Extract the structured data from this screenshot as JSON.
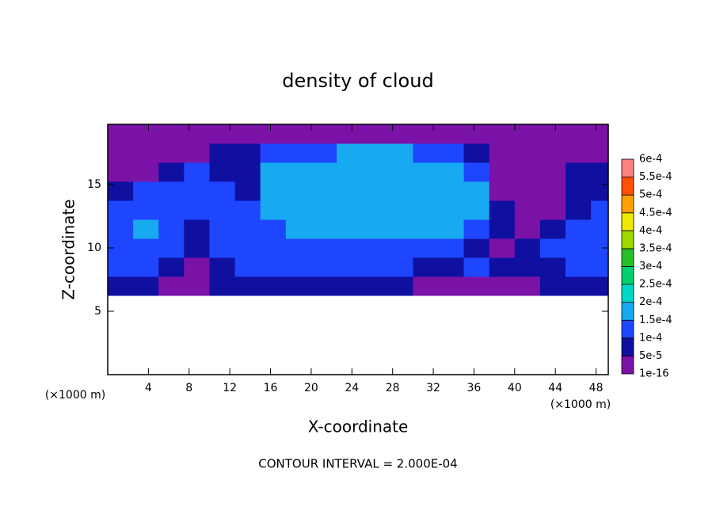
{
  "chart_data": {
    "type": "contour",
    "title": "density of cloud",
    "xlabel": "X-coordinate",
    "ylabel": "Z-coordinate",
    "x_unit": "(×1000 m)",
    "y_unit": "(×1000 m)",
    "footer": "CONTOUR INTERVAL = 2.000E-04",
    "x": [
      1.25,
      3.75,
      6.25,
      8.75,
      11.25,
      13.75,
      16.25,
      18.75,
      21.25,
      23.75,
      26.25,
      28.75,
      31.25,
      33.75,
      36.25,
      38.75,
      41.25,
      43.75,
      46.25,
      48.75
    ],
    "y": [
      7,
      8.5,
      10,
      11.5,
      13,
      14.5,
      16,
      17.5,
      19
    ],
    "values": [
      [
        7.5e-05,
        7.5e-05,
        2.5e-05,
        2.5e-05,
        7.5e-05,
        7.5e-05,
        7.5e-05,
        7.5e-05,
        7.5e-05,
        7.5e-05,
        7.5e-05,
        7.5e-05,
        2.5e-05,
        2.5e-05,
        2.5e-05,
        2.5e-05,
        2.5e-05,
        7.5e-05,
        7.5e-05,
        7.5e-05
      ],
      [
        0.000125,
        0.000125,
        7.5e-05,
        2.5e-05,
        7.5e-05,
        0.000125,
        0.000125,
        0.000125,
        0.000125,
        0.000125,
        0.000125,
        0.000125,
        7.5e-05,
        7.5e-05,
        0.000125,
        7.5e-05,
        7.5e-05,
        7.5e-05,
        0.000125,
        0.000125
      ],
      [
        0.000125,
        0.000125,
        0.000125,
        7.5e-05,
        0.000125,
        0.000125,
        0.000125,
        0.000125,
        0.000125,
        0.000125,
        0.000125,
        0.000125,
        0.000125,
        0.000125,
        7.5e-05,
        2.5e-05,
        7.5e-05,
        0.000125,
        0.000125,
        0.000125
      ],
      [
        0.000125,
        0.000175,
        0.000125,
        7.5e-05,
        0.000125,
        0.000125,
        0.000125,
        0.000175,
        0.000175,
        0.000175,
        0.000175,
        0.000175,
        0.000175,
        0.000175,
        0.000125,
        7.5e-05,
        2.5e-05,
        7.5e-05,
        0.000125,
        0.000125
      ],
      [
        0.000125,
        0.000125,
        0.000125,
        0.000125,
        0.000125,
        0.000125,
        0.000175,
        0.000175,
        0.000175,
        0.000175,
        0.000175,
        0.000175,
        0.000175,
        0.000175,
        0.000175,
        7.5e-05,
        2.5e-05,
        2.5e-05,
        7.5e-05,
        0.000125
      ],
      [
        7.5e-05,
        0.000125,
        0.000125,
        0.000125,
        0.000125,
        7.5e-05,
        0.000175,
        0.000175,
        0.000175,
        0.000175,
        0.000175,
        0.000175,
        0.000175,
        0.000175,
        0.000175,
        2.5e-05,
        2.5e-05,
        2.5e-05,
        7.5e-05,
        7.5e-05
      ],
      [
        2.5e-05,
        2.5e-05,
        7.5e-05,
        0.000125,
        7.5e-05,
        7.5e-05,
        0.000175,
        0.000175,
        0.000175,
        0.000175,
        0.000175,
        0.000175,
        0.000175,
        0.000175,
        0.000125,
        2.5e-05,
        2.5e-05,
        2.5e-05,
        7.5e-05,
        7.5e-05
      ],
      [
        2.5e-05,
        2.5e-05,
        2.5e-05,
        2.5e-05,
        7.5e-05,
        7.5e-05,
        0.000125,
        0.000125,
        0.000125,
        0.000175,
        0.000175,
        0.000175,
        0.000125,
        0.000125,
        7.5e-05,
        2.5e-05,
        2.5e-05,
        2.5e-05,
        2.5e-05,
        2.5e-05
      ],
      [
        2.5e-05,
        2.5e-05,
        2.5e-05,
        2.5e-05,
        2.5e-05,
        2.5e-05,
        2.5e-05,
        2.5e-05,
        2.5e-05,
        2.5e-05,
        2.5e-05,
        2.5e-05,
        2.5e-05,
        2.5e-05,
        2.5e-05,
        2.5e-05,
        2.5e-05,
        2.5e-05,
        2.5e-05,
        2.5e-05
      ]
    ],
    "xlim": [
      0,
      49.2
    ],
    "ylim": [
      0,
      19.75
    ],
    "xticks": [
      4,
      8,
      12,
      16,
      20,
      24,
      28,
      32,
      36,
      40,
      44,
      48
    ],
    "yticks": [
      5,
      10,
      15
    ],
    "colorbar": {
      "ticks": [
        {
          "value": 1e-16,
          "label": "1e-16"
        },
        {
          "value": 5e-05,
          "label": "5e-5"
        },
        {
          "value": 0.0001,
          "label": "1e-4"
        },
        {
          "value": 0.00015,
          "label": "1.5e-4"
        },
        {
          "value": 0.0002,
          "label": "2e-4"
        },
        {
          "value": 0.00025,
          "label": "2.5e-4"
        },
        {
          "value": 0.0003,
          "label": "3e-4"
        },
        {
          "value": 0.00035,
          "label": "3.5e-4"
        },
        {
          "value": 0.0004,
          "label": "4e-4"
        },
        {
          "value": 0.00045,
          "label": "4.5e-4"
        },
        {
          "value": 0.0005,
          "label": "5e-4"
        },
        {
          "value": 0.00055,
          "label": "5.5e-4"
        },
        {
          "value": 0.0006,
          "label": "6e-4"
        }
      ],
      "colors": [
        "#7a12a8",
        "#1010a0",
        "#1e46ff",
        "#18aaf0",
        "#00d8c8",
        "#00d070",
        "#28c028",
        "#a0d800",
        "#f0e800",
        "#ffa000",
        "#ff5000",
        "#ff8080"
      ]
    }
  }
}
